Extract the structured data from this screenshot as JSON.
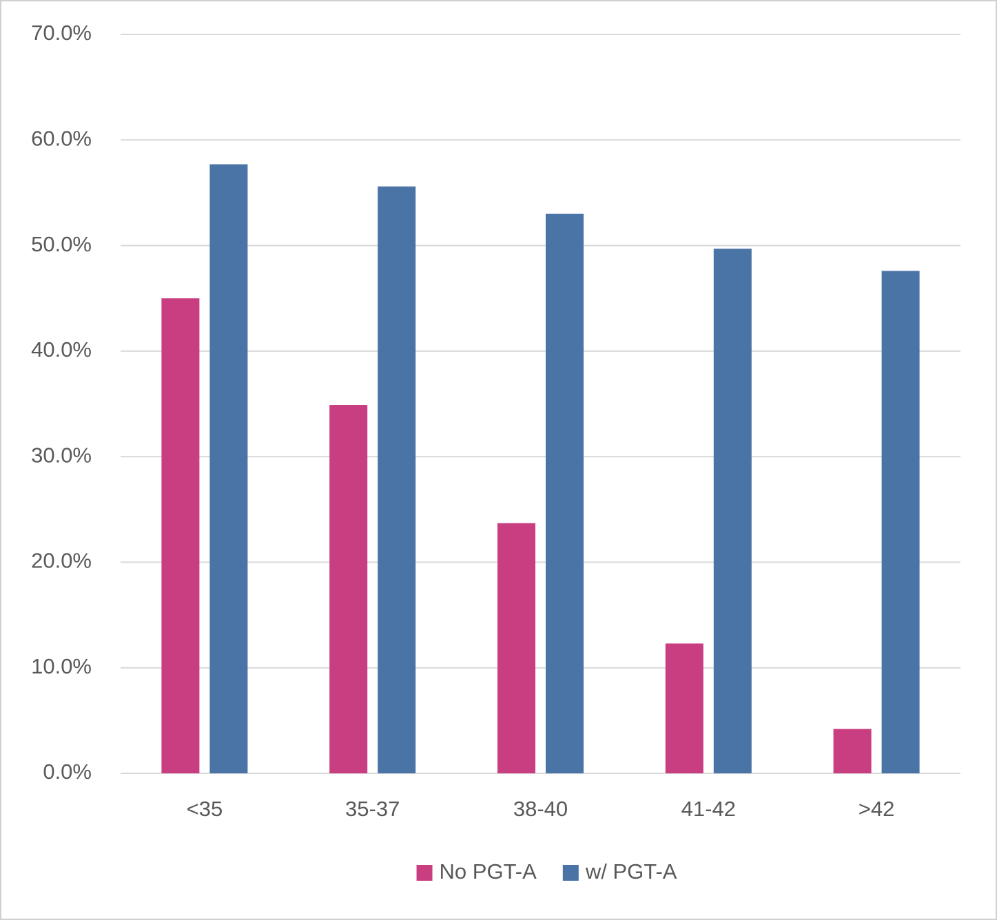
{
  "chart_data": {
    "type": "bar",
    "categories": [
      "<35",
      "35-37",
      "38-40",
      "41-42",
      ">42"
    ],
    "series": [
      {
        "name": "No PGT-A",
        "color": "#c83e80",
        "values": [
          45.0,
          34.9,
          23.7,
          12.3,
          4.2
        ]
      },
      {
        "name": "w/ PGT-A",
        "color": "#4a74a6",
        "values": [
          57.7,
          55.6,
          53.0,
          49.7,
          47.6
        ]
      }
    ],
    "ylim": [
      0,
      70
    ],
    "yticks": [
      {
        "value": 0,
        "label": "0.0%"
      },
      {
        "value": 10,
        "label": "10.0%"
      },
      {
        "value": 20,
        "label": "20.0%"
      },
      {
        "value": 30,
        "label": "30.0%"
      },
      {
        "value": 40,
        "label": "40.0%"
      },
      {
        "value": 50,
        "label": "50.0%"
      },
      {
        "value": 60,
        "label": "60.0%"
      },
      {
        "value": 70,
        "label": "70.0%"
      }
    ],
    "grid": true,
    "legend": "bottom"
  }
}
